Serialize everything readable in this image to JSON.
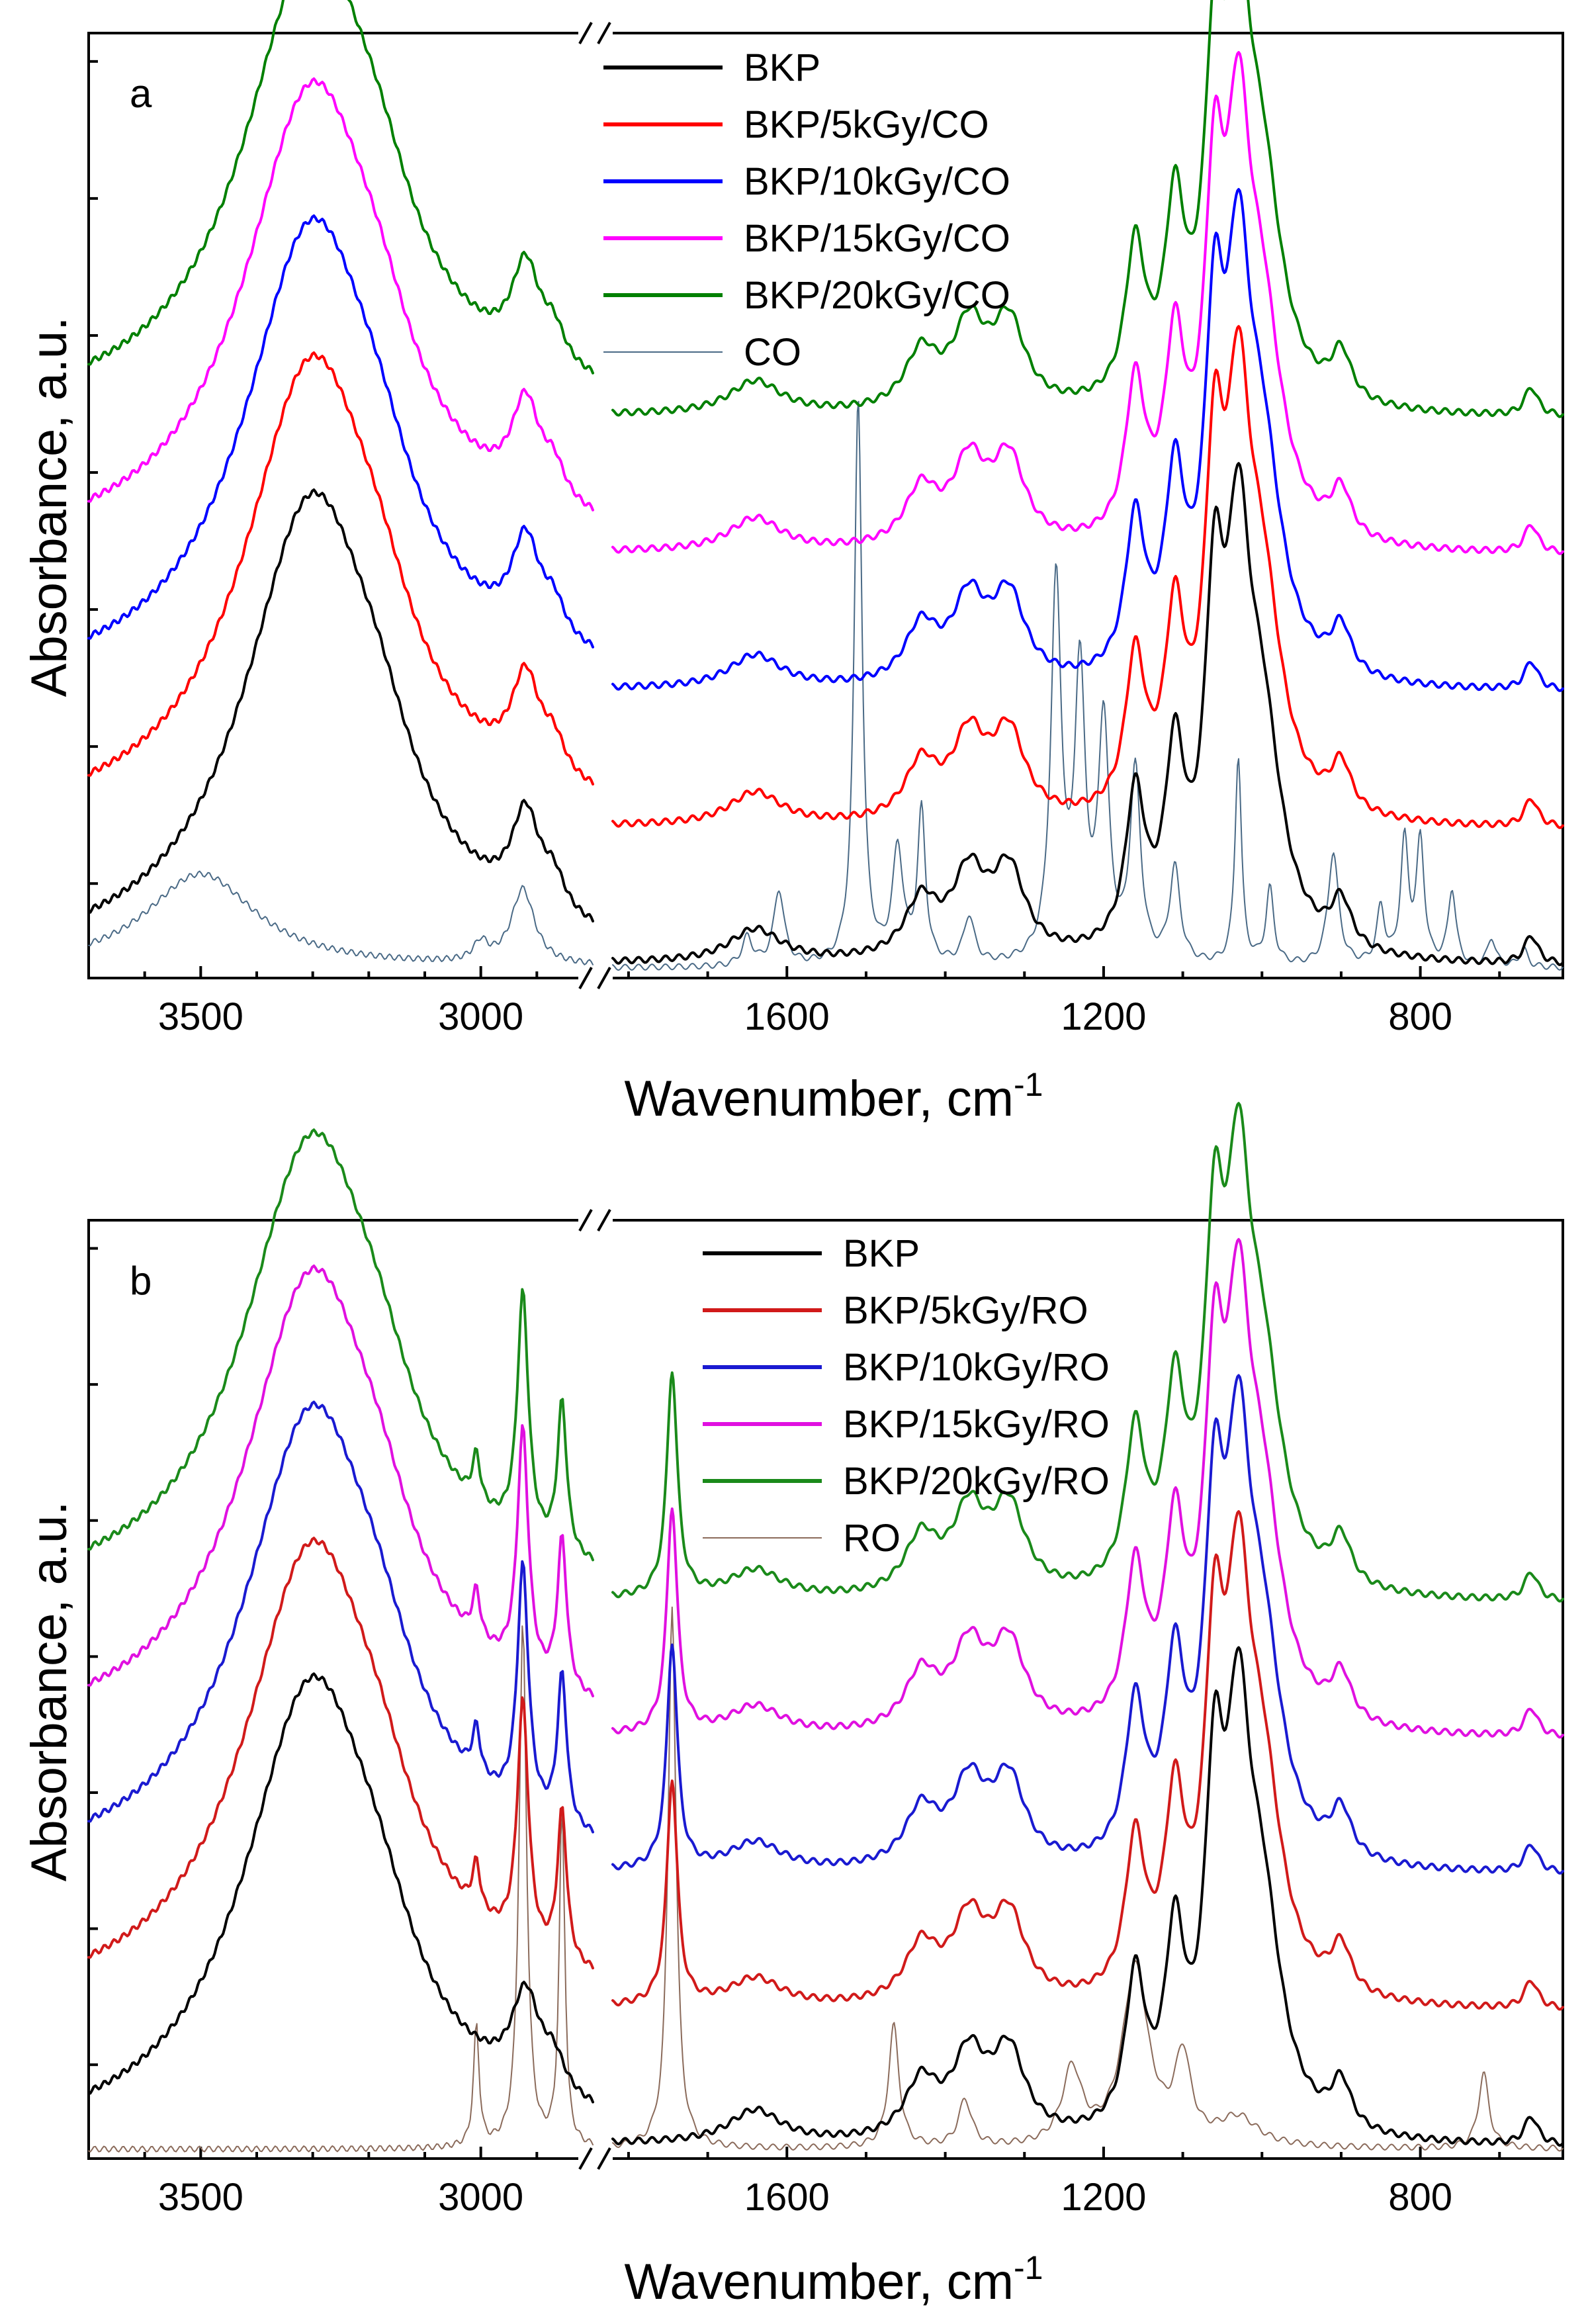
{
  "chart_data": [
    {
      "type": "line",
      "panel": "a",
      "xlabel": "Wavenumber, cm",
      "xlabel_superscript": "-1",
      "ylabel": "Absorbance, a.u.",
      "x_reversed": true,
      "x_break": true,
      "xlim_left": [
        3700,
        2800
      ],
      "xlim_right": [
        1820,
        620
      ],
      "ylim": [
        0,
        10
      ],
      "xticks_left": [
        3500,
        3000
      ],
      "xticks_right": [
        1600,
        1200,
        800
      ],
      "legend_position": "top-center",
      "series": [
        {
          "name": "BKP",
          "color": "#000000",
          "width": 4,
          "offset": 0,
          "peaks": [
            [
              3300,
              4.9,
              150
            ],
            [
              3180,
              0.5,
              70
            ],
            [
              2920,
              1.0,
              30
            ],
            [
              2870,
              0.35,
              25
            ],
            [
              1640,
              0.35,
              40
            ],
            [
              1430,
              0.6,
              25
            ],
            [
              1370,
              0.85,
              25
            ],
            [
              1320,
              0.9,
              25
            ],
            [
              1160,
              1.6,
              15
            ],
            [
              1110,
              1.9,
              15
            ],
            [
              1060,
              3.2,
              15
            ],
            [
              1030,
              3.5,
              18
            ],
            [
              1000,
              2.2,
              30
            ],
            [
              900,
              0.5,
              15
            ],
            [
              660,
              0.3,
              10
            ]
          ]
        },
        {
          "name": "BKP/5kGy/CO",
          "color": "#ff0000",
          "width": 4,
          "offset": 1.45,
          "peaks": [
            [
              3300,
              4.9,
              150
            ],
            [
              3180,
              0.5,
              70
            ],
            [
              2920,
              1.0,
              30
            ],
            [
              2870,
              0.35,
              25
            ],
            [
              1640,
              0.35,
              40
            ],
            [
              1430,
              0.6,
              25
            ],
            [
              1370,
              0.85,
              25
            ],
            [
              1320,
              0.9,
              25
            ],
            [
              1160,
              1.6,
              15
            ],
            [
              1110,
              1.9,
              15
            ],
            [
              1060,
              3.2,
              15
            ],
            [
              1030,
              3.5,
              18
            ],
            [
              1000,
              2.2,
              30
            ],
            [
              900,
              0.5,
              15
            ],
            [
              660,
              0.3,
              10
            ]
          ]
        },
        {
          "name": "BKP/10kGy/CO",
          "color": "#0000ff",
          "width": 4,
          "offset": 2.9,
          "peaks": [
            [
              3300,
              4.9,
              150
            ],
            [
              3180,
              0.5,
              70
            ],
            [
              2920,
              1.0,
              30
            ],
            [
              2870,
              0.35,
              25
            ],
            [
              1640,
              0.35,
              40
            ],
            [
              1430,
              0.6,
              25
            ],
            [
              1370,
              0.85,
              25
            ],
            [
              1320,
              0.9,
              25
            ],
            [
              1160,
              1.6,
              15
            ],
            [
              1110,
              1.9,
              15
            ],
            [
              1060,
              3.2,
              15
            ],
            [
              1030,
              3.5,
              18
            ],
            [
              1000,
              2.2,
              30
            ],
            [
              900,
              0.5,
              15
            ],
            [
              660,
              0.3,
              10
            ]
          ]
        },
        {
          "name": "BKP/15kGy/CO",
          "color": "#ff00ff",
          "width": 4,
          "offset": 4.35,
          "peaks": [
            [
              3300,
              4.9,
              150
            ],
            [
              3180,
              0.5,
              70
            ],
            [
              2920,
              1.0,
              30
            ],
            [
              2870,
              0.35,
              25
            ],
            [
              1640,
              0.35,
              40
            ],
            [
              1430,
              0.6,
              25
            ],
            [
              1370,
              0.85,
              25
            ],
            [
              1320,
              0.9,
              25
            ],
            [
              1160,
              1.6,
              15
            ],
            [
              1110,
              1.9,
              15
            ],
            [
              1060,
              3.2,
              15
            ],
            [
              1030,
              3.5,
              18
            ],
            [
              1000,
              2.2,
              30
            ],
            [
              900,
              0.5,
              15
            ],
            [
              660,
              0.3,
              10
            ]
          ]
        },
        {
          "name": "BKP/20kGy/CO",
          "color": "#008000",
          "width": 4,
          "offset": 5.8,
          "peaks": [
            [
              3300,
              4.9,
              150
            ],
            [
              3180,
              0.5,
              70
            ],
            [
              2920,
              1.0,
              30
            ],
            [
              2870,
              0.35,
              25
            ],
            [
              1640,
              0.35,
              40
            ],
            [
              1430,
              0.6,
              25
            ],
            [
              1370,
              0.85,
              25
            ],
            [
              1320,
              0.9,
              25
            ],
            [
              1160,
              1.6,
              15
            ],
            [
              1110,
              1.9,
              15
            ],
            [
              1060,
              3.2,
              15
            ],
            [
              1030,
              3.5,
              18
            ],
            [
              1000,
              2.2,
              30
            ],
            [
              900,
              0.5,
              15
            ],
            [
              660,
              0.3,
              10
            ]
          ]
        },
        {
          "name": "CO",
          "color": "#4a6a86",
          "width": 2,
          "offset": 0,
          "peaks": [
            [
              3500,
              1.0,
              120
            ],
            [
              3000,
              0.2,
              15
            ],
            [
              2925,
              0.8,
              25
            ],
            [
              1650,
              0.3,
              8
            ],
            [
              1610,
              0.8,
              8
            ],
            [
              1510,
              6.0,
              6
            ],
            [
              1460,
              1.2,
              8
            ],
            [
              1430,
              1.6,
              6
            ],
            [
              1370,
              0.5,
              8
            ],
            [
              1260,
              4.0,
              8
            ],
            [
              1230,
              3.0,
              8
            ],
            [
              1200,
              2.5,
              8
            ],
            [
              1160,
              2.0,
              8
            ],
            [
              1110,
              1.0,
              8
            ],
            [
              1030,
              2.2,
              5
            ],
            [
              990,
              0.8,
              6
            ],
            [
              910,
              1.2,
              8
            ],
            [
              850,
              0.6,
              6
            ],
            [
              820,
              1.3,
              6
            ],
            [
              800,
              1.3,
              6
            ],
            [
              760,
              0.8,
              6
            ],
            [
              710,
              0.3,
              6
            ],
            [
              670,
              0.2,
              6
            ]
          ]
        }
      ]
    },
    {
      "type": "line",
      "panel": "b",
      "xlabel": "Wavenumber, cm",
      "xlabel_superscript": "-1",
      "ylabel": "Absorbance, a.u.",
      "x_reversed": true,
      "x_break": true,
      "xlim_left": [
        3700,
        2800
      ],
      "xlim_right": [
        1820,
        620
      ],
      "ylim": [
        0,
        10
      ],
      "xticks_left": [
        3500,
        3000
      ],
      "xticks_right": [
        1600,
        1200,
        800
      ],
      "legend_position": "top-center",
      "series": [
        {
          "name": "BKP",
          "color": "#000000",
          "width": 4,
          "offset": 0,
          "peaks": [
            [
              3300,
              4.9,
              150
            ],
            [
              3180,
              0.5,
              70
            ],
            [
              2920,
              1.0,
              30
            ],
            [
              2870,
              0.35,
              25
            ],
            [
              1640,
              0.35,
              40
            ],
            [
              1430,
              0.6,
              25
            ],
            [
              1370,
              0.85,
              25
            ],
            [
              1320,
              0.9,
              25
            ],
            [
              1160,
              1.6,
              15
            ],
            [
              1110,
              1.9,
              15
            ],
            [
              1060,
              3.2,
              15
            ],
            [
              1030,
              3.5,
              18
            ],
            [
              1000,
              2.2,
              30
            ],
            [
              900,
              0.5,
              15
            ],
            [
              660,
              0.3,
              10
            ]
          ]
        },
        {
          "name": "BKP/5kGy/RO",
          "color": "#d11a1a",
          "width": 4,
          "offset": 1.45,
          "peaks": [
            [
              3300,
              4.9,
              150
            ],
            [
              3180,
              0.5,
              70
            ],
            [
              3008,
              0.5,
              8
            ],
            [
              2925,
              2.6,
              12
            ],
            [
              2855,
              1.6,
              10
            ],
            [
              1745,
              2.4,
              8
            ],
            [
              1640,
              0.3,
              40
            ],
            [
              1430,
              0.6,
              25
            ],
            [
              1370,
              0.85,
              25
            ],
            [
              1320,
              0.9,
              25
            ],
            [
              1160,
              1.6,
              15
            ],
            [
              1110,
              1.9,
              15
            ],
            [
              1060,
              3.2,
              15
            ],
            [
              1030,
              3.5,
              18
            ],
            [
              1000,
              2.2,
              30
            ],
            [
              900,
              0.5,
              15
            ],
            [
              660,
              0.3,
              10
            ]
          ]
        },
        {
          "name": "BKP/10kGy/RO",
          "color": "#1a1ad1",
          "width": 4,
          "offset": 2.9,
          "peaks": [
            [
              3300,
              4.9,
              150
            ],
            [
              3180,
              0.5,
              70
            ],
            [
              3008,
              0.5,
              8
            ],
            [
              2925,
              2.6,
              12
            ],
            [
              2855,
              1.6,
              10
            ],
            [
              1745,
              2.4,
              8
            ],
            [
              1640,
              0.3,
              40
            ],
            [
              1430,
              0.6,
              25
            ],
            [
              1370,
              0.85,
              25
            ],
            [
              1320,
              0.9,
              25
            ],
            [
              1160,
              1.6,
              15
            ],
            [
              1110,
              1.9,
              15
            ],
            [
              1060,
              3.2,
              15
            ],
            [
              1030,
              3.5,
              18
            ],
            [
              1000,
              2.2,
              30
            ],
            [
              900,
              0.5,
              15
            ],
            [
              660,
              0.3,
              10
            ]
          ]
        },
        {
          "name": "BKP/15kGy/RO",
          "color": "#e010e0",
          "width": 4,
          "offset": 4.35,
          "peaks": [
            [
              3300,
              4.9,
              150
            ],
            [
              3180,
              0.5,
              70
            ],
            [
              3008,
              0.5,
              8
            ],
            [
              2925,
              2.6,
              12
            ],
            [
              2855,
              1.6,
              10
            ],
            [
              1745,
              2.4,
              8
            ],
            [
              1640,
              0.3,
              40
            ],
            [
              1430,
              0.6,
              25
            ],
            [
              1370,
              0.85,
              25
            ],
            [
              1320,
              0.9,
              25
            ],
            [
              1160,
              1.6,
              15
            ],
            [
              1110,
              1.9,
              15
            ],
            [
              1060,
              3.2,
              15
            ],
            [
              1030,
              3.5,
              18
            ],
            [
              1000,
              2.2,
              30
            ],
            [
              900,
              0.5,
              15
            ],
            [
              660,
              0.3,
              10
            ]
          ]
        },
        {
          "name": "BKP/20kGy/RO",
          "color": "#1a8a1a",
          "width": 4,
          "offset": 5.8,
          "peaks": [
            [
              3300,
              4.9,
              150
            ],
            [
              3180,
              0.5,
              70
            ],
            [
              3008,
              0.5,
              8
            ],
            [
              2925,
              2.6,
              12
            ],
            [
              2855,
              1.6,
              10
            ],
            [
              1745,
              2.4,
              8
            ],
            [
              1640,
              0.3,
              40
            ],
            [
              1430,
              0.6,
              25
            ],
            [
              1370,
              0.85,
              25
            ],
            [
              1320,
              0.9,
              25
            ],
            [
              1160,
              1.6,
              15
            ],
            [
              1110,
              1.9,
              15
            ],
            [
              1060,
              3.2,
              15
            ],
            [
              1030,
              3.5,
              18
            ],
            [
              1000,
              2.2,
              30
            ],
            [
              900,
              0.5,
              15
            ],
            [
              660,
              0.3,
              10
            ]
          ]
        },
        {
          "name": "RO",
          "color": "#8b6b5b",
          "width": 2,
          "offset": 0,
          "peaks": [
            [
              3008,
              1.3,
              6
            ],
            [
              2925,
              5.6,
              8
            ],
            [
              2855,
              3.6,
              6
            ],
            [
              1745,
              5.8,
              6
            ],
            [
              1465,
              1.3,
              8
            ],
            [
              1375,
              0.5,
              10
            ],
            [
              1240,
              0.8,
              15
            ],
            [
              1160,
              1.9,
              20
            ],
            [
              1100,
              0.9,
              12
            ],
            [
              1030,
              0.3,
              30
            ],
            [
              720,
              0.8,
              8
            ]
          ]
        }
      ]
    }
  ]
}
